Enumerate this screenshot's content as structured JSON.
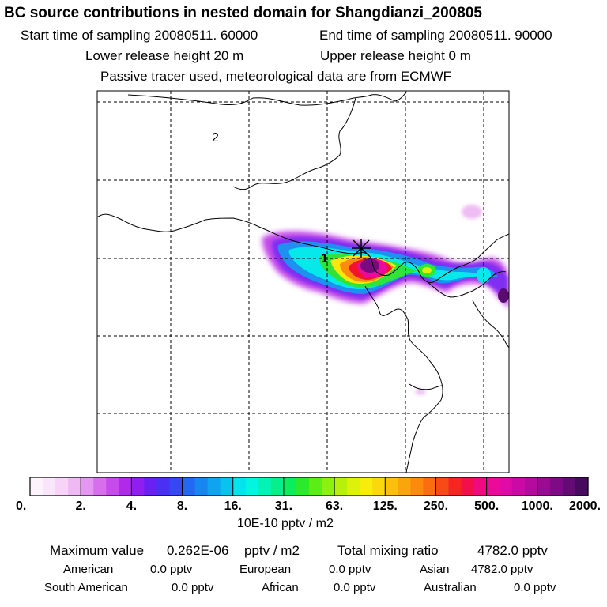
{
  "header": {
    "title": "BC  source contributions in nested domain for Shangdianzi_200805",
    "start_time": "Start time of sampling 20080511. 60000",
    "end_time": "End time of sampling 20080511. 90000",
    "lower_height": "Lower release height   20 m",
    "upper_height": "Upper release height    0 m",
    "passive_note": "Passive tracer used, meteorological data are from ECMWF"
  },
  "chart_data": {
    "type": "heatmap",
    "map_labels": [
      "2",
      "1"
    ],
    "colorbar": {
      "tick_labels": [
        "0.",
        "2.",
        "4.",
        "8.",
        "16.",
        "31.",
        "63.",
        "125.",
        "250.",
        "500.",
        "1000.",
        "2000."
      ],
      "tick_values": [
        0,
        2,
        4,
        8,
        16,
        31,
        63,
        125,
        250,
        500,
        1000,
        2000
      ],
      "colors": [
        "#fdf3fd",
        "#fae6fb",
        "#f6d3f7",
        "#efb9f3",
        "#e596f0",
        "#d76eec",
        "#c54bea",
        "#b02ae9",
        "#8f1ff0",
        "#6a1ff3",
        "#4a2ff4",
        "#3548f3",
        "#2368f2",
        "#1786f1",
        "#0ea4f0",
        "#08c3ee",
        "#05e3ec",
        "#03f4e0",
        "#03f2b6",
        "#05ef8a",
        "#0aed5c",
        "#2bea2b",
        "#5cec16",
        "#8df00e",
        "#b7f10a",
        "#ddf20a",
        "#f7ec0b",
        "#fad80c",
        "#fbc00c",
        "#fba50c",
        "#fb8a0d",
        "#fa6d10",
        "#f74a16",
        "#f52622",
        "#f3104a",
        "#f10a7e",
        "#ec0a9a",
        "#e00aa6",
        "#cb0aa6",
        "#b40a9e",
        "#9a0a93",
        "#7f0a85",
        "#640a74",
        "#480a5e"
      ],
      "unit_label": "10E-10 pptv / m2"
    },
    "stats": {
      "maximum_label": "Maximum value",
      "maximum_value": "0.262E-06",
      "maximum_unit": "pptv / m2",
      "total_label": "Total mixing ratio",
      "total_value": "4782.0 pptv"
    },
    "regions": {
      "american": {
        "label": "American",
        "value": "0.0 pptv"
      },
      "european": {
        "label": "European",
        "value": "0.0 pptv"
      },
      "asian": {
        "label": "Asian",
        "value": "4782.0 pptv"
      },
      "south_american": {
        "label": "South American",
        "value": "0.0 pptv"
      },
      "african": {
        "label": "African",
        "value": "0.0 pptv"
      },
      "australian": {
        "label": "Australian",
        "value": "0.0 pptv"
      }
    }
  }
}
